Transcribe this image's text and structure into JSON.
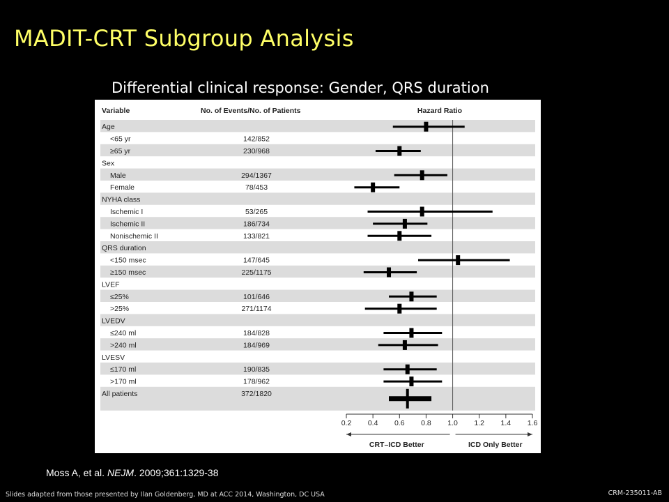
{
  "slide": {
    "title": "MADIT-CRT Subgroup Analysis",
    "subtitle": "Differential clinical response: Gender, QRS duration",
    "citation_prefix": "Moss A, et al. ",
    "citation_journal": "NEJM",
    "citation_suffix": ". 2009;361:1329-38",
    "footer": "Slides adapted from those presented by Ilan Goldenberg, MD at ACC 2014, Washington, DC USA",
    "code": "CRM-235011-AB"
  },
  "colors": {
    "title": "#ffff66",
    "band": "#dcdcdc",
    "mark": "#000000"
  },
  "chart_data": {
    "type": "forest",
    "columns": {
      "variable": "Variable",
      "events": "No. of Events/No. of Patients",
      "hr": "Hazard Ratio"
    },
    "rows": [
      {
        "label": "Age",
        "group": true,
        "events": "",
        "hr": 0.8,
        "lo": 0.55,
        "hi": 1.09
      },
      {
        "label": "<65 yr",
        "events": "142/852",
        "hr": null
      },
      {
        "label": "≥65 yr",
        "events": "230/968",
        "hr": 0.6,
        "lo": 0.42,
        "hi": 0.76
      },
      {
        "label": "Sex",
        "group": true,
        "events": "",
        "hr": null
      },
      {
        "label": "Male",
        "events": "294/1367",
        "hr": 0.77,
        "lo": 0.56,
        "hi": 0.96
      },
      {
        "label": "Female",
        "events": "78/453",
        "hr": 0.4,
        "lo": 0.26,
        "hi": 0.6
      },
      {
        "label": "NYHA class",
        "group": true,
        "events": "",
        "hr": null
      },
      {
        "label": "Ischemic I",
        "events": "53/265",
        "hr": 0.77,
        "lo": 0.36,
        "hi": 1.3
      },
      {
        "label": "Ischemic II",
        "events": "186/734",
        "hr": 0.64,
        "lo": 0.4,
        "hi": 0.81
      },
      {
        "label": "Nonischemic II",
        "events": "133/821",
        "hr": 0.6,
        "lo": 0.36,
        "hi": 0.84
      },
      {
        "label": "QRS duration",
        "group": true,
        "events": "",
        "hr": null
      },
      {
        "label": "<150 msec",
        "events": "147/645",
        "hr": 1.04,
        "lo": 0.74,
        "hi": 1.43
      },
      {
        "label": "≥150 msec",
        "events": "225/1175",
        "hr": 0.52,
        "lo": 0.33,
        "hi": 0.73
      },
      {
        "label": "LVEF",
        "group": true,
        "events": "",
        "hr": null
      },
      {
        "label": "≤25%",
        "events": "101/646",
        "hr": 0.69,
        "lo": 0.52,
        "hi": 0.88
      },
      {
        "label": ">25%",
        "events": "271/1174",
        "hr": 0.6,
        "lo": 0.34,
        "hi": 0.88
      },
      {
        "label": "LVEDV",
        "group": true,
        "events": "",
        "hr": null
      },
      {
        "label": "≤240 ml",
        "events": "184/828",
        "hr": 0.69,
        "lo": 0.48,
        "hi": 0.92
      },
      {
        "label": ">240 ml",
        "events": "184/969",
        "hr": 0.64,
        "lo": 0.44,
        "hi": 0.89
      },
      {
        "label": "LVESV",
        "group": true,
        "events": "",
        "hr": null
      },
      {
        "label": "≤170 ml",
        "events": "190/835",
        "hr": 0.66,
        "lo": 0.48,
        "hi": 0.88
      },
      {
        "label": ">170 ml",
        "events": "178/962",
        "hr": 0.69,
        "lo": 0.48,
        "hi": 0.92
      },
      {
        "label": "All patients",
        "events": "372/1820",
        "hr": 0.66,
        "lo": 0.52,
        "hi": 0.84,
        "overall": true
      }
    ],
    "x_ticks": [
      0.2,
      0.4,
      0.6,
      0.8,
      1.0,
      1.2,
      1.4,
      1.6
    ],
    "x_tick_labels": [
      "0.2",
      "0.4",
      "0.6",
      "0.8",
      "1.0",
      "1.2",
      "1.4",
      "1.6"
    ],
    "xlim": [
      0.2,
      1.6
    ],
    "reference_line": 1.0,
    "left_label": "CRT–ICD Better",
    "right_label": "ICD Only Better"
  }
}
